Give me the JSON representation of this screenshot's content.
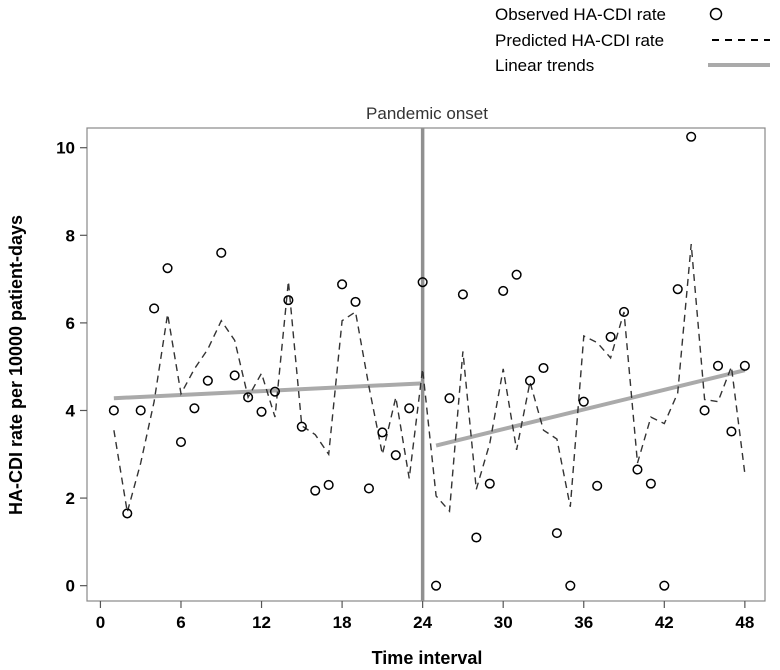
{
  "chart_data": {
    "type": "scatter",
    "title": "",
    "xlabel": "Time interval",
    "ylabel": "HA-CDI rate per 10000 patient-days",
    "xlim": [
      -1,
      49.5
    ],
    "ylim": [
      -0.35,
      10.45
    ],
    "xticks": [
      0,
      6,
      12,
      18,
      24,
      30,
      36,
      42,
      48
    ],
    "yticks": [
      0,
      2,
      4,
      6,
      8,
      10
    ],
    "annotation": {
      "text": "Pandemic onset",
      "x": 24
    },
    "legend": {
      "position": "top-right",
      "entries": [
        "Observed HA-CDI rate",
        "Predicted HA-CDI rate",
        "Linear trends"
      ]
    },
    "series": [
      {
        "name": "Observed HA-CDI rate",
        "style": "circle",
        "x": [
          1,
          2,
          3,
          4,
          5,
          6,
          7,
          8,
          9,
          10,
          11,
          12,
          13,
          14,
          15,
          16,
          17,
          18,
          19,
          20,
          21,
          22,
          23,
          24,
          25,
          26,
          27,
          28,
          29,
          30,
          31,
          32,
          33,
          34,
          35,
          36,
          37,
          38,
          39,
          40,
          41,
          42,
          43,
          44,
          45,
          46,
          47,
          48
        ],
        "y": [
          4.0,
          1.65,
          4.0,
          6.33,
          7.25,
          3.28,
          4.05,
          4.68,
          7.6,
          4.8,
          4.3,
          3.97,
          4.43,
          6.52,
          3.63,
          2.17,
          2.3,
          6.88,
          6.48,
          2.22,
          3.5,
          2.98,
          4.05,
          6.93,
          0.0,
          4.28,
          6.65,
          1.1,
          2.33,
          6.73,
          7.1,
          4.68,
          4.97,
          1.2,
          0.0,
          4.2,
          2.28,
          5.68,
          6.25,
          2.65,
          2.33,
          0.0,
          6.77,
          10.25,
          4.0,
          5.02,
          3.52,
          5.02
        ]
      },
      {
        "name": "Predicted HA-CDI rate",
        "style": "dashed",
        "x": [
          1,
          2,
          3,
          4,
          5,
          6,
          7,
          8,
          9,
          10,
          11,
          12,
          13,
          14,
          15,
          16,
          17,
          18,
          19,
          20,
          21,
          22,
          23,
          24,
          25,
          26,
          27,
          28,
          29,
          30,
          31,
          32,
          33,
          34,
          35,
          36,
          37,
          38,
          39,
          40,
          41,
          42,
          43,
          44,
          45,
          46,
          47,
          48
        ],
        "y": [
          3.55,
          1.68,
          2.8,
          4.2,
          6.2,
          4.38,
          4.95,
          5.4,
          6.05,
          5.6,
          4.3,
          4.85,
          3.85,
          6.95,
          3.65,
          3.45,
          3.0,
          6.05,
          6.25,
          4.55,
          3.0,
          4.3,
          2.45,
          4.95,
          2.05,
          1.7,
          5.35,
          2.2,
          3.25,
          4.95,
          3.1,
          4.65,
          3.55,
          3.35,
          1.8,
          5.7,
          5.55,
          5.2,
          6.25,
          2.8,
          3.85,
          3.7,
          4.4,
          7.8,
          4.25,
          4.2,
          5.0,
          2.55
        ]
      },
      {
        "name": "Linear trends",
        "style": "solid-gray",
        "segments": [
          {
            "x": [
              1,
              24
            ],
            "y": [
              4.28,
              4.62
            ]
          },
          {
            "x": [
              25,
              48
            ],
            "y": [
              3.2,
              4.92
            ]
          }
        ]
      }
    ]
  }
}
